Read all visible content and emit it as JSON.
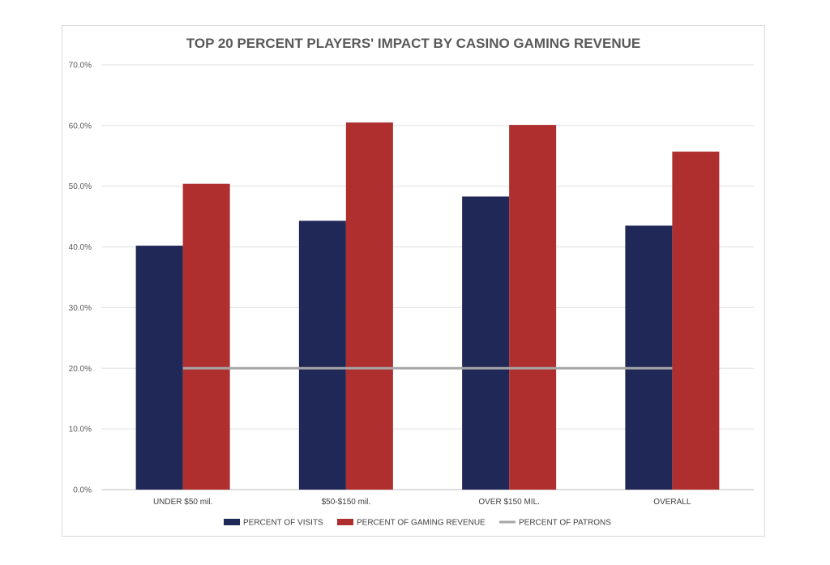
{
  "chart_data": {
    "type": "bar",
    "title": "TOP 20 PERCENT PLAYERS' IMPACT BY CASINO GAMING REVENUE",
    "categories": [
      "UNDER $50 mil.",
      "$50-$150 mil.",
      "OVER $150 MIL.",
      "OVERALL"
    ],
    "series": [
      {
        "name": "PERCENT OF VISITS",
        "type": "bar",
        "color": "#1f2857",
        "values": [
          40.2,
          44.3,
          48.3,
          43.5
        ]
      },
      {
        "name": "PERCENT OF GAMING REVENUE",
        "type": "bar",
        "color": "#ae2f2e",
        "values": [
          50.4,
          60.5,
          60.1,
          55.7
        ]
      },
      {
        "name": "PERCENT OF PATRONS",
        "type": "line",
        "color": "#a6a6a6",
        "values": [
          20.0,
          20.0,
          20.0,
          20.0
        ]
      }
    ],
    "ylim": [
      0,
      70
    ],
    "yticks": [
      "0.0%",
      "10.0%",
      "20.0%",
      "30.0%",
      "40.0%",
      "50.0%",
      "60.0%",
      "70.0%"
    ],
    "grid": true,
    "legend": "bottom"
  }
}
